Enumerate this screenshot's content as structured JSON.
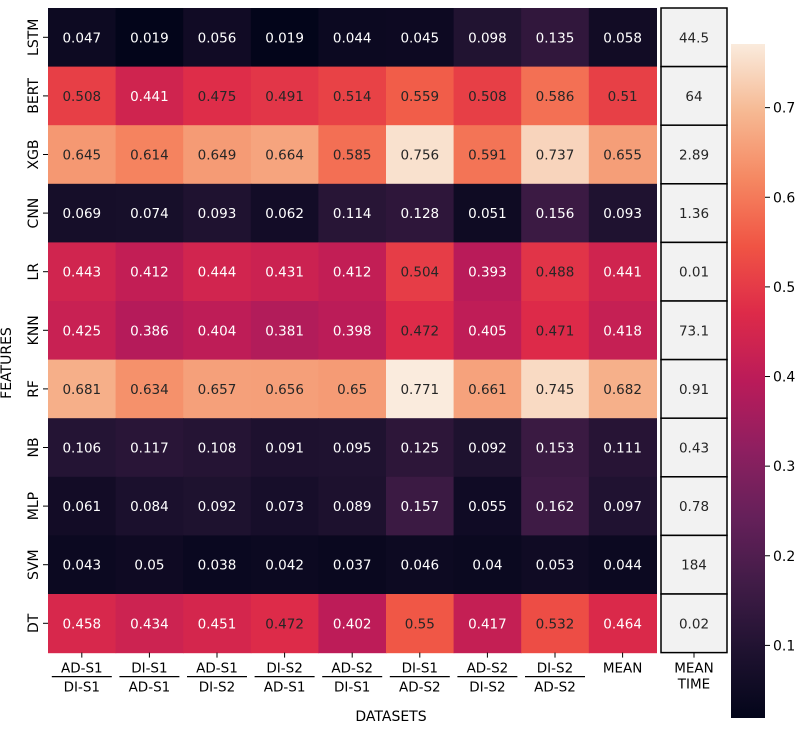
{
  "chart_data": {
    "type": "heatmap",
    "title": "",
    "xlabel": "DATASETS",
    "ylabel": "FEATURES",
    "rows": [
      "LSTM",
      "BERT",
      "XGB",
      "CNN",
      "LR",
      "KNN",
      "RF",
      "NB",
      "MLP",
      "SVM",
      "DT"
    ],
    "columns": [
      {
        "top": "AD-S1",
        "bottom": "DI-S1"
      },
      {
        "top": "DI-S1",
        "bottom": "AD-S1"
      },
      {
        "top": "AD-S1",
        "bottom": "DI-S2"
      },
      {
        "top": "DI-S2",
        "bottom": "AD-S1"
      },
      {
        "top": "AD-S2",
        "bottom": "DI-S1"
      },
      {
        "top": "DI-S1",
        "bottom": "AD-S2"
      },
      {
        "top": "AD-S2",
        "bottom": "DI-S2"
      },
      {
        "top": "DI-S2",
        "bottom": "AD-S2"
      },
      {
        "top": "MEAN",
        "bottom": ""
      }
    ],
    "values": [
      [
        0.047,
        0.019,
        0.056,
        0.019,
        0.044,
        0.045,
        0.098,
        0.135,
        0.058
      ],
      [
        0.508,
        0.441,
        0.475,
        0.491,
        0.514,
        0.559,
        0.508,
        0.586,
        0.51
      ],
      [
        0.645,
        0.614,
        0.649,
        0.664,
        0.585,
        0.756,
        0.591,
        0.737,
        0.655
      ],
      [
        0.069,
        0.074,
        0.093,
        0.062,
        0.114,
        0.128,
        0.051,
        0.156,
        0.093
      ],
      [
        0.443,
        0.412,
        0.444,
        0.431,
        0.412,
        0.504,
        0.393,
        0.488,
        0.441
      ],
      [
        0.425,
        0.386,
        0.404,
        0.381,
        0.398,
        0.472,
        0.405,
        0.471,
        0.418
      ],
      [
        0.681,
        0.634,
        0.657,
        0.656,
        0.65,
        0.771,
        0.661,
        0.745,
        0.682
      ],
      [
        0.106,
        0.117,
        0.108,
        0.091,
        0.095,
        0.125,
        0.092,
        0.153,
        0.111
      ],
      [
        0.061,
        0.084,
        0.092,
        0.073,
        0.089,
        0.157,
        0.055,
        0.162,
        0.097
      ],
      [
        0.043,
        0.05,
        0.038,
        0.042,
        0.037,
        0.046,
        0.04,
        0.053,
        0.044
      ],
      [
        0.458,
        0.434,
        0.451,
        0.472,
        0.402,
        0.55,
        0.417,
        0.532,
        0.464
      ]
    ],
    "time_column": {
      "header_top": "MEAN",
      "header_bottom": "TIME",
      "values": [
        "44.5",
        "64",
        "2.89",
        "1.36",
        "0.01",
        "73.1",
        "0.91",
        "0.43",
        "0.78",
        "184",
        "0.02"
      ],
      "cell_color": "#f2f2f2"
    },
    "colorbar": {
      "colormap": "rocket",
      "vmin": 0.019,
      "vmax": 0.771,
      "ticks": [
        "0.1",
        "0.2",
        "0.3",
        "0.4",
        "0.5",
        "0.6",
        "0.7"
      ]
    },
    "grid": false,
    "legend": "colorbar-right"
  }
}
